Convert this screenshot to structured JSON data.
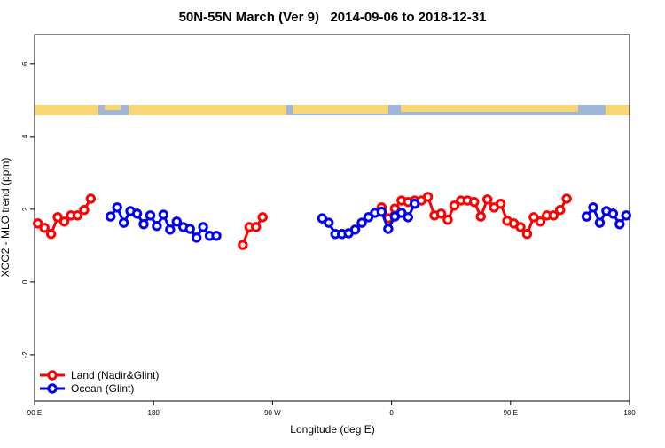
{
  "chart_data": {
    "type": "line",
    "title": "50N-55N March (Ver 9)   2014-09-06 to 2018-12-31",
    "xlabel": "Longitude (deg E)",
    "ylabel": "XCO2 - MLO trend (ppm)",
    "xlim": [
      90,
      540
    ],
    "ylim": [
      -3.27,
      6.8
    ],
    "xticks": [
      {
        "value": 90,
        "label": "90 E"
      },
      {
        "value": 180,
        "label": "180"
      },
      {
        "value": 270,
        "label": "90 W"
      },
      {
        "value": 360,
        "label": "0"
      },
      {
        "value": 450,
        "label": "90 E"
      },
      {
        "value": 540,
        "label": "180"
      }
    ],
    "yticks": [
      -2,
      0,
      2,
      4,
      6
    ],
    "legend": "bottom-left",
    "series": [
      {
        "name": "Land (Nadir&Glint)",
        "color": "#ff0000",
        "x": [
          92.5,
          97.5,
          102.5,
          107.5,
          112.5,
          117.5,
          122.5,
          127.5,
          132.5,
          137.5,
          247.5,
          252.5,
          257.5,
          262.5,
          267.5,
          352.5,
          357.5,
          362.5,
          367.5,
          372.5,
          377.5,
          382.5,
          387.5,
          392.5,
          397.5,
          402.5,
          407.5,
          412.5,
          417.5,
          422.5,
          427.5,
          432.5,
          437.5,
          442.5,
          447.5,
          452.5,
          457.5,
          462.5,
          467.5,
          472.5,
          477.5,
          482.5,
          487.5,
          492.5
        ],
        "values": [
          1.61,
          1.49,
          1.32,
          1.78,
          1.66,
          1.83,
          1.83,
          1.98,
          2.29,
          null,
          1.02,
          1.51,
          1.51,
          1.78,
          null,
          2.05,
          1.75,
          2.02,
          2.24,
          2.2,
          2.24,
          2.24,
          2.34,
          1.83,
          1.88,
          1.71,
          2.1,
          2.24,
          2.24,
          2.2,
          1.8,
          2.27,
          2.05,
          2.15,
          1.68,
          1.61,
          1.51,
          1.32,
          1.78,
          1.66,
          1.83,
          1.83,
          1.98,
          2.29
        ]
      },
      {
        "name": "Ocean (Glint)",
        "color": "#0000ee",
        "x": [
          147.5,
          152.5,
          157.5,
          162.5,
          167.5,
          172.5,
          177.5,
          182.5,
          187.5,
          192.5,
          197.5,
          202.5,
          207.5,
          212.5,
          217.5,
          222.5,
          227.5,
          232.5,
          307.5,
          312.5,
          317.5,
          322.5,
          327.5,
          332.5,
          337.5,
          342.5,
          347.5,
          352.5,
          357.5,
          362.5,
          367.5,
          372.5,
          377.5,
          502.5,
          507.5,
          512.5,
          517.5,
          522.5,
          527.5,
          532.5,
          537.5
        ],
        "values": [
          1.8,
          2.05,
          1.63,
          1.95,
          1.88,
          1.59,
          1.83,
          1.54,
          1.85,
          1.44,
          1.66,
          1.51,
          1.46,
          1.22,
          1.51,
          1.27,
          1.27,
          null,
          1.75,
          1.63,
          1.32,
          1.32,
          1.34,
          1.44,
          1.63,
          1.78,
          1.9,
          1.93,
          1.46,
          1.8,
          1.9,
          1.78,
          2.15,
          null,
          1.8,
          2.05,
          1.63,
          1.95,
          1.88,
          1.59,
          1.83
        ]
      }
    ]
  }
}
